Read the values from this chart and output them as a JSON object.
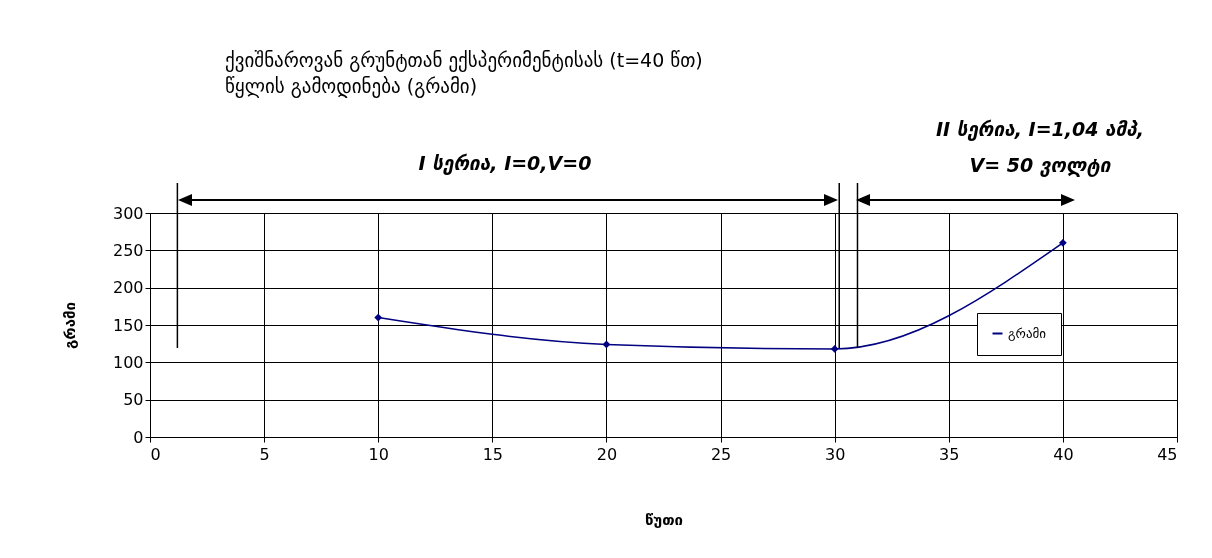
{
  "chart_data": {
    "type": "line",
    "title": "ქვიშნაროვან გრუნტთან ექსპერიმენტისას (t=40 წთ)\nწყლის გამოდინება  (გრამი)",
    "xlabel": "წუთი",
    "ylabel": "გრამი",
    "x": [
      10,
      20,
      30,
      40
    ],
    "series": [
      {
        "name": "გრამი",
        "color": "#000080",
        "values": [
          160,
          124,
          118,
          260
        ]
      }
    ],
    "xlim": [
      0,
      45
    ],
    "xticks": [
      0,
      5,
      10,
      15,
      20,
      25,
      30,
      35,
      40,
      45
    ],
    "ylim": [
      0,
      300
    ],
    "yticks": [
      0,
      50,
      100,
      150,
      200,
      250,
      300
    ],
    "ref_lines": [
      {
        "axis": "x",
        "value": 1.2
      },
      {
        "axis": "x",
        "value": 30.2
      },
      {
        "axis": "x",
        "value": 31.0
      }
    ],
    "grid": true,
    "legend": "right",
    "marker": "diamond",
    "line_style": "solid",
    "annotations": [
      "I სერია, I=0,V=0",
      "II სერია, I=1,04 ამპ,\nV= 50 ვოლტი"
    ]
  }
}
